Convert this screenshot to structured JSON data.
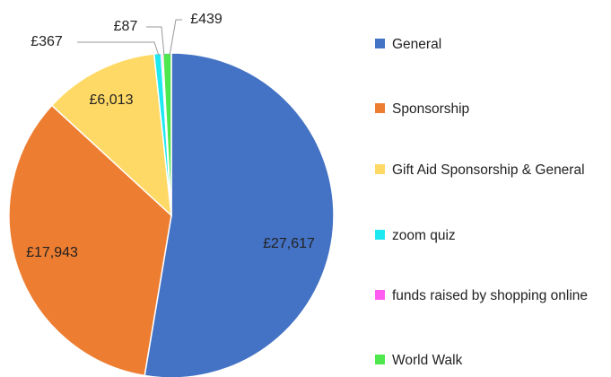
{
  "chart_data": {
    "type": "pie",
    "categories": [
      "General",
      "Sponsorship",
      "Gift Aid Sponsorship & General",
      "zoom quiz",
      "funds raised by shopping online",
      "World Walk"
    ],
    "values": [
      27617,
      17943,
      6013,
      367,
      87,
      439
    ],
    "value_labels": [
      "£27,617",
      "£17,943",
      "£6,013",
      "£367",
      "£87",
      "£439"
    ],
    "colors": [
      "#4472c4",
      "#ed7d31",
      "#ffd966",
      "#1ee8f0",
      "#ff5cf0",
      "#4ee84e"
    ],
    "legend": "right"
  }
}
